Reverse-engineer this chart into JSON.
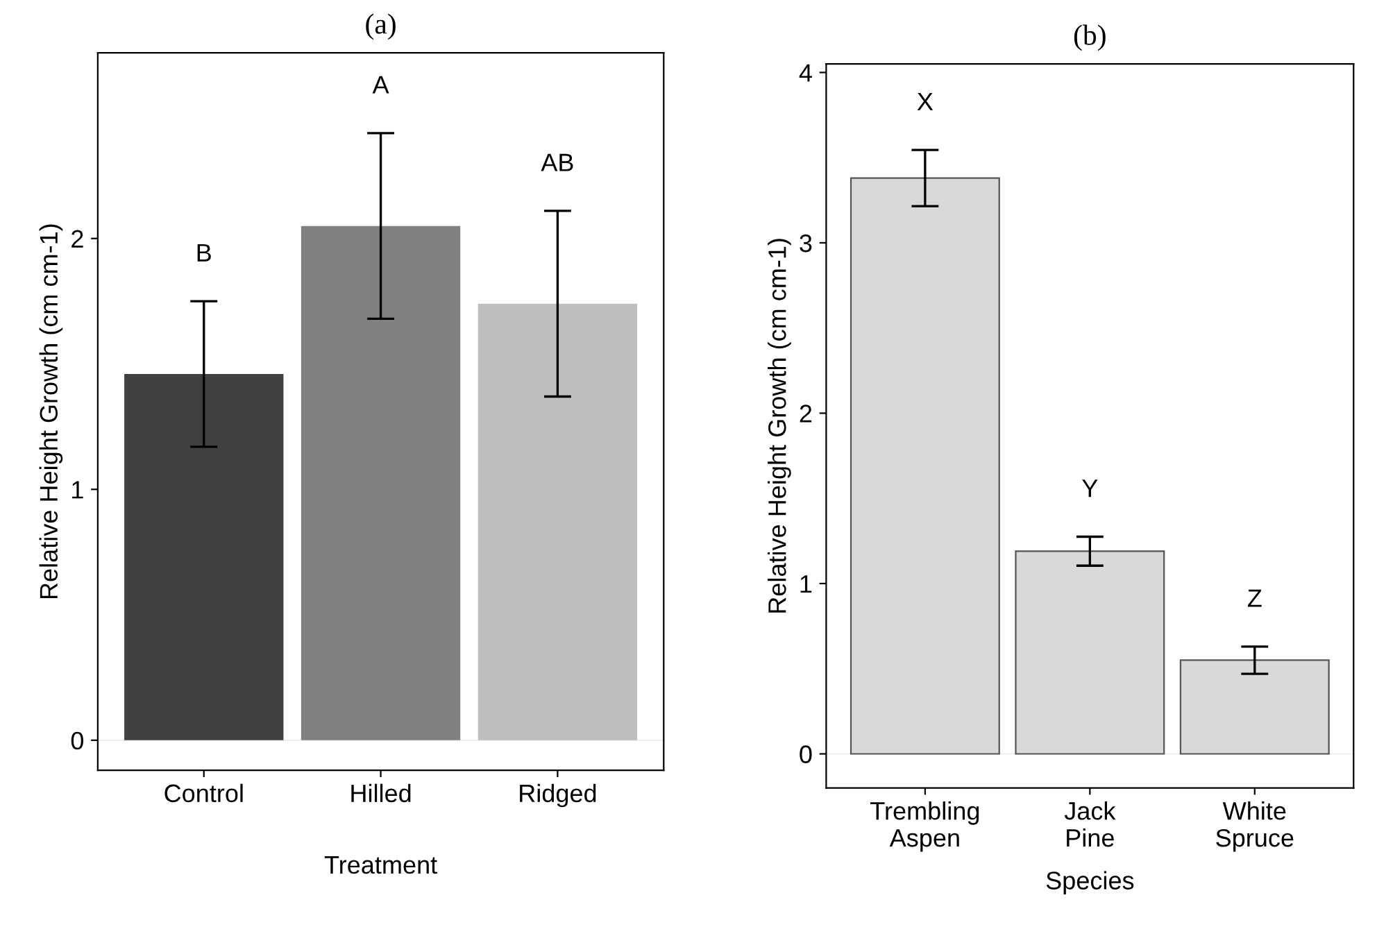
{
  "chart_data": [
    {
      "type": "bar",
      "title": "(a)",
      "xlabel": "Treatment",
      "ylabel": "Relative Height Growth (cm cm-1)",
      "categories": [
        "Control",
        "Hilled",
        "Ridged"
      ],
      "values": [
        1.46,
        2.05,
        1.74
      ],
      "errors": [
        0.29,
        0.37,
        0.37
      ],
      "colors": [
        "#404040",
        "#808080",
        "#bebebe"
      ],
      "ylim": [
        -0.12,
        2.74
      ],
      "yticks": [
        0,
        1,
        2
      ],
      "grid": false,
      "legend": false,
      "ref_lines": [
        {
          "axis": "y",
          "value": 0,
          "color": "#eeeeee"
        }
      ],
      "annotations": [
        "B",
        "A",
        "AB"
      ]
    },
    {
      "type": "bar",
      "title": "(b)",
      "xlabel": "Species",
      "ylabel": "Relative Height Growth (cm cm-1)",
      "categories": [
        "Trembling\nAspen",
        "Jack\nPine",
        "White\nSpruce"
      ],
      "values": [
        3.38,
        1.19,
        0.55
      ],
      "errors": [
        0.165,
        0.085,
        0.08
      ],
      "colors": [
        "#d9d9d9",
        "#d9d9d9",
        "#d9d9d9"
      ],
      "ylim": [
        -0.2,
        4.05
      ],
      "yticks": [
        0,
        1,
        2,
        3,
        4
      ],
      "grid": false,
      "legend": false,
      "ref_lines": [
        {
          "axis": "y",
          "value": 0,
          "color": "#eeeeee"
        }
      ],
      "annotations": [
        "X",
        "Y",
        "Z"
      ]
    }
  ]
}
